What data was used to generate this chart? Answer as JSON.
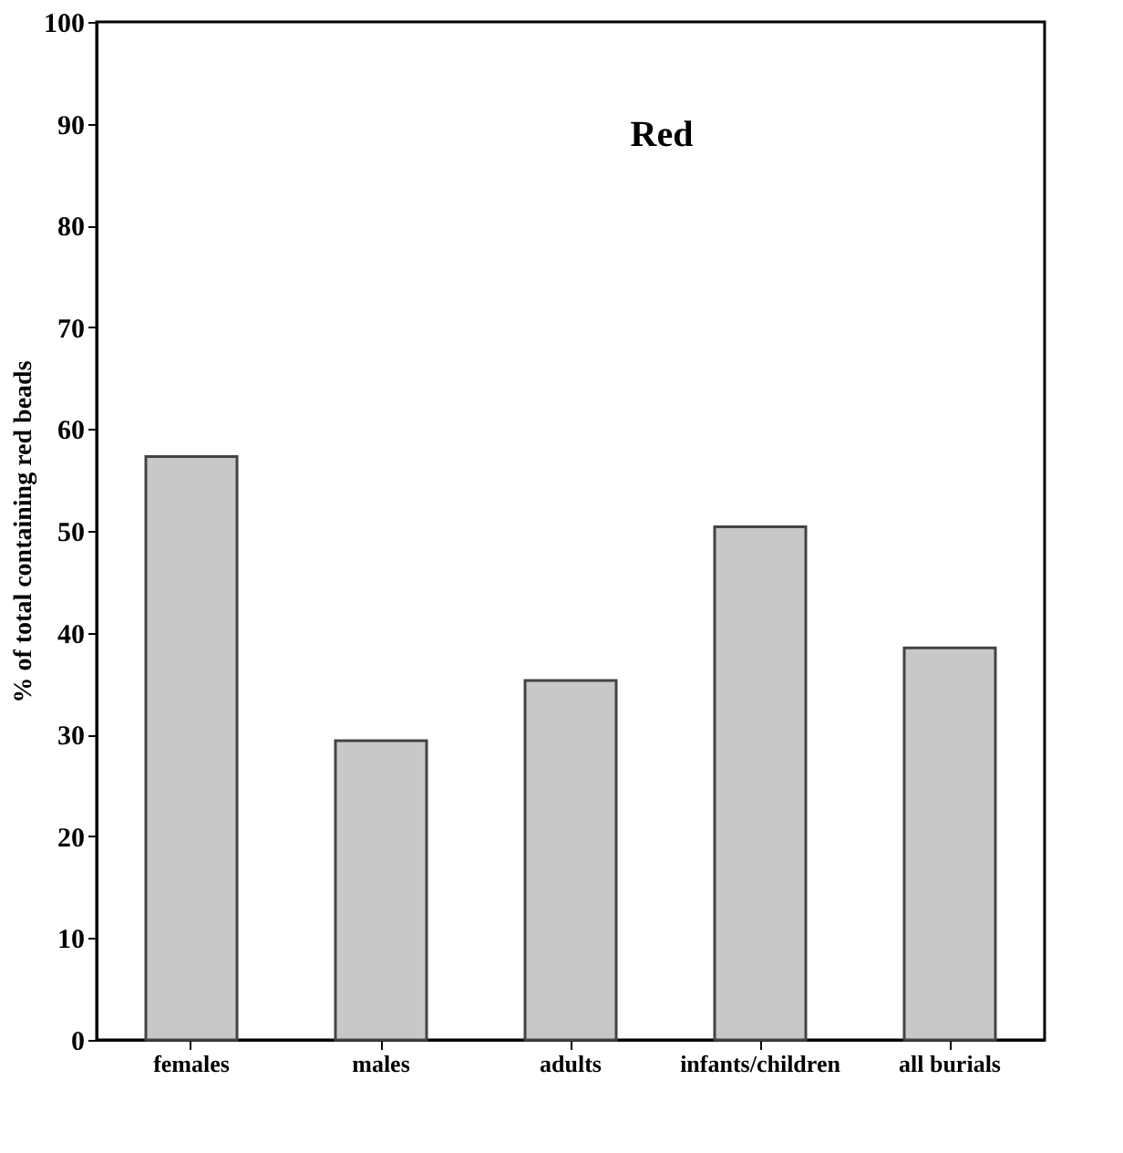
{
  "chart_data": {
    "type": "bar",
    "ylabel": "% of total containing red beads",
    "categories": [
      "females",
      "males",
      "adults",
      "infants/children",
      "all burials"
    ],
    "values": [
      57.3,
      29.4,
      35.3,
      50.4,
      38.5
    ],
    "color": "#c8c8c8",
    "ylim": [
      0,
      100
    ],
    "yticks": [
      0,
      10,
      20,
      30,
      40,
      50,
      60,
      70,
      80,
      90,
      100
    ],
    "grid": false,
    "annotations": [
      "Red"
    ]
  }
}
